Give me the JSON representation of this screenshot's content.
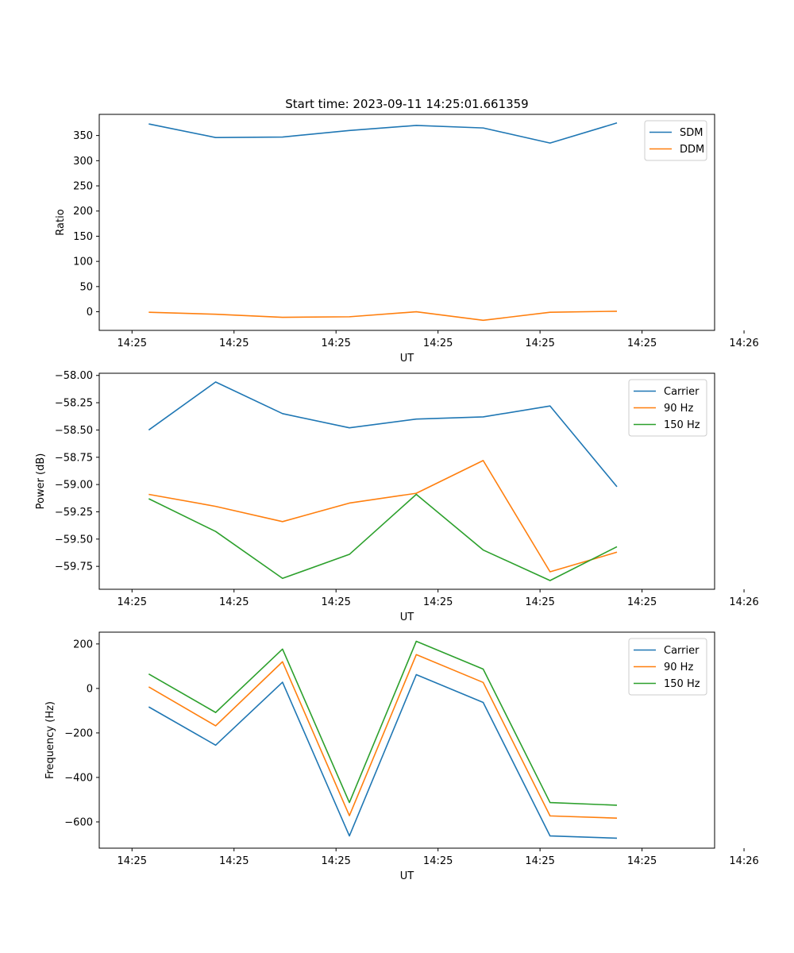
{
  "figure_title": "Start time: 2023-09-11 14:25:01.661359",
  "colors": {
    "c0": "#1f77b4",
    "c1": "#ff7f0e",
    "c2": "#2ca02c"
  },
  "chart_data": [
    {
      "type": "line",
      "title": "Start time: 2023-09-11 14:25:01.661359",
      "xlabel": "UT",
      "ylabel": "Ratio",
      "x": [
        0,
        1,
        2,
        3,
        4,
        5,
        6,
        7
      ],
      "xlim": [
        -0.74,
        8.46
      ],
      "x_ticks": [
        {
          "x": -0.25,
          "label": "14:25"
        },
        {
          "x": 1.275,
          "label": "14:25"
        },
        {
          "x": 2.8,
          "label": "14:25"
        },
        {
          "x": 4.325,
          "label": "14:25"
        },
        {
          "x": 5.85,
          "label": "14:25"
        },
        {
          "x": 7.375,
          "label": "14:25"
        },
        {
          "x": 8.9,
          "label": "14:26"
        }
      ],
      "ylim": [
        -37,
        392
      ],
      "y_ticks": [
        {
          "y": 0,
          "label": "0"
        },
        {
          "y": 50,
          "label": "50"
        },
        {
          "y": 100,
          "label": "100"
        },
        {
          "y": 150,
          "label": "150"
        },
        {
          "y": 200,
          "label": "200"
        },
        {
          "y": 250,
          "label": "250"
        },
        {
          "y": 300,
          "label": "300"
        },
        {
          "y": 350,
          "label": "350"
        }
      ],
      "legend_position": "upper right",
      "series": [
        {
          "name": "SDM",
          "color": "#1f77b4",
          "values": [
            373,
            346,
            347,
            360,
            370,
            365,
            335,
            375
          ]
        },
        {
          "name": "DDM",
          "color": "#ff7f0e",
          "values": [
            -1,
            -5,
            -11,
            -10,
            0,
            -17,
            -1,
            1
          ]
        }
      ]
    },
    {
      "type": "line",
      "title": "",
      "xlabel": "UT",
      "ylabel": "Power (dB)",
      "x": [
        0,
        1,
        2,
        3,
        4,
        5,
        6,
        7
      ],
      "xlim": [
        -0.74,
        8.46
      ],
      "x_ticks": [
        {
          "x": -0.25,
          "label": "14:25"
        },
        {
          "x": 1.275,
          "label": "14:25"
        },
        {
          "x": 2.8,
          "label": "14:25"
        },
        {
          "x": 4.325,
          "label": "14:25"
        },
        {
          "x": 5.85,
          "label": "14:25"
        },
        {
          "x": 7.375,
          "label": "14:25"
        },
        {
          "x": 8.9,
          "label": "14:26"
        }
      ],
      "ylim": [
        -59.96,
        -57.98
      ],
      "y_ticks": [
        {
          "y": -58.0,
          "label": "−58.00"
        },
        {
          "y": -58.25,
          "label": "−58.25"
        },
        {
          "y": -58.5,
          "label": "−58.50"
        },
        {
          "y": -58.75,
          "label": "−58.75"
        },
        {
          "y": -59.0,
          "label": "−59.00"
        },
        {
          "y": -59.25,
          "label": "−59.25"
        },
        {
          "y": -59.5,
          "label": "−59.50"
        },
        {
          "y": -59.75,
          "label": "−59.75"
        }
      ],
      "legend_position": "upper right",
      "series": [
        {
          "name": "Carrier",
          "color": "#1f77b4",
          "values": [
            -58.5,
            -58.06,
            -58.35,
            -58.48,
            -58.4,
            -58.38,
            -58.28,
            -59.02
          ]
        },
        {
          "name": "90 Hz",
          "color": "#ff7f0e",
          "values": [
            -59.09,
            -59.2,
            -59.34,
            -59.17,
            -59.08,
            -58.78,
            -59.8,
            -59.62
          ]
        },
        {
          "name": "150 Hz",
          "color": "#2ca02c",
          "values": [
            -59.13,
            -59.43,
            -59.86,
            -59.64,
            -59.09,
            -59.6,
            -59.88,
            -59.57
          ]
        }
      ]
    },
    {
      "type": "line",
      "title": "",
      "xlabel": "UT",
      "ylabel": "Frequency (Hz)",
      "x": [
        0,
        1,
        2,
        3,
        4,
        5,
        6,
        7
      ],
      "xlim": [
        -0.74,
        8.46
      ],
      "x_ticks": [
        {
          "x": -0.25,
          "label": "14:25"
        },
        {
          "x": 1.275,
          "label": "14:25"
        },
        {
          "x": 2.8,
          "label": "14:25"
        },
        {
          "x": 4.325,
          "label": "14:25"
        },
        {
          "x": 5.85,
          "label": "14:25"
        },
        {
          "x": 7.375,
          "label": "14:25"
        },
        {
          "x": 8.9,
          "label": "14:26"
        }
      ],
      "ylim": [
        -718,
        253
      ],
      "y_ticks": [
        {
          "y": 200,
          "label": "200"
        },
        {
          "y": 0,
          "label": "0"
        },
        {
          "y": -200,
          "label": "−200"
        },
        {
          "y": -400,
          "label": "−400"
        },
        {
          "y": -600,
          "label": "−600"
        }
      ],
      "legend_position": "upper right",
      "series": [
        {
          "name": "Carrier",
          "color": "#1f77b4",
          "values": [
            -83,
            -255,
            28,
            -663,
            62,
            -63,
            -663,
            -673
          ]
        },
        {
          "name": "90 Hz",
          "color": "#ff7f0e",
          "values": [
            7,
            -168,
            120,
            -572,
            152,
            27,
            -573,
            -583
          ]
        },
        {
          "name": "150 Hz",
          "color": "#2ca02c",
          "values": [
            65,
            -108,
            177,
            -513,
            212,
            87,
            -513,
            -525
          ]
        }
      ]
    }
  ]
}
